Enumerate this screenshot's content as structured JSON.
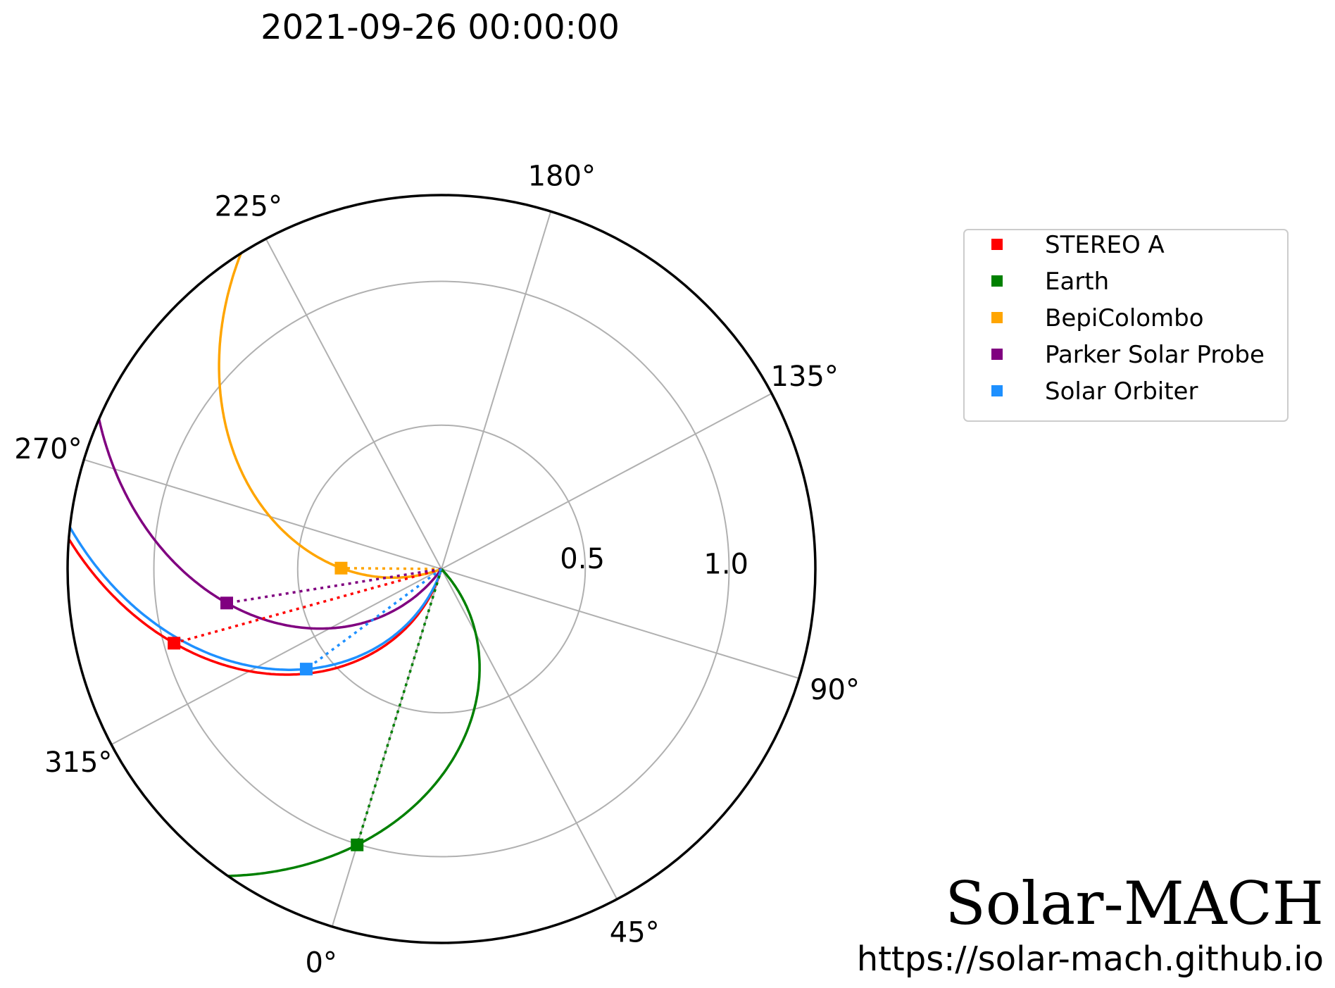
{
  "chart_data": {
    "type": "polar",
    "title": "2021-09-26 00:00:00",
    "theta_ticks": [
      "0°",
      "45°",
      "90°",
      "135°",
      "180°",
      "225°",
      "270°",
      "315°"
    ],
    "theta_tick_values": [
      0,
      45,
      90,
      135,
      180,
      225,
      270,
      315
    ],
    "r_ticks": [
      "0.5",
      "1.0"
    ],
    "r_tick_values": [
      0.5,
      1.0
    ],
    "r_grid": [
      0.5,
      1.0,
      1.5
    ],
    "rmax": 1.3,
    "grid": true,
    "legend_position": "right",
    "radial_lines": "dotted",
    "spirals": "solid",
    "series": [
      {
        "name": "STEREO A",
        "color": "#ff0000",
        "r": 0.965,
        "lon": 302.5,
        "spiral_rmin": 0.0,
        "spiral_rmax": 1.3
      },
      {
        "name": "Earth",
        "color": "#008000",
        "r": 1.003,
        "lon": 0.0,
        "spiral_rmin": 0.0,
        "spiral_rmax": 1.3
      },
      {
        "name": "BepiColombo",
        "color": "#ffa500",
        "r": 0.349,
        "lon": 286.5,
        "spiral_rmin": 0.0,
        "spiral_rmax": 1.3
      },
      {
        "name": "Parker Solar Probe",
        "color": "#800080",
        "r": 0.756,
        "lon": 296.0,
        "spiral_rmin": 0.0,
        "spiral_rmax": 1.3
      },
      {
        "name": "Solar Orbiter",
        "color": "#1e90ff",
        "r": 0.585,
        "lon": 323.5,
        "spiral_rmin": 0.0,
        "spiral_rmax": 1.3
      }
    ]
  },
  "branding": {
    "name": "Solar-MACH",
    "url": "https://solar-mach.github.io"
  }
}
